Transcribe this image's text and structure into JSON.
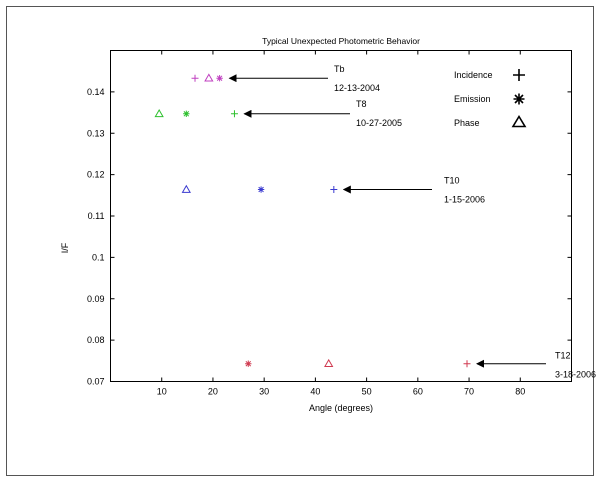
{
  "chart_data": {
    "type": "scatter",
    "title": "Typical Unexpected Photometric Behavior",
    "xlabel": "Angle (degrees)",
    "ylabel": "I/F",
    "xlim": [
      0,
      90
    ],
    "ylim": [
      0.07,
      0.15
    ],
    "xticks": [
      "10",
      "20",
      "30",
      "40",
      "50",
      "60",
      "70",
      "80"
    ],
    "yticks": [
      "0.07",
      "0.08",
      "0.09",
      "0.1",
      "0.11",
      "0.12",
      "0.13",
      "0.14"
    ],
    "grid": false,
    "legend": {
      "placement": "top-right",
      "entries": [
        {
          "label": "Incidence",
          "marker": "plus"
        },
        {
          "label": "Emission",
          "marker": "star"
        },
        {
          "label": "Phase",
          "marker": "triangle"
        }
      ]
    },
    "series": [
      {
        "flyby": "Tb 12-13-2004",
        "color": "#c040c0",
        "points": [
          {
            "kind": "incidence",
            "x": 16.5,
            "y": 0.1433
          },
          {
            "kind": "phase",
            "x": 19.2,
            "y": 0.1433
          },
          {
            "kind": "emission",
            "x": 21.3,
            "y": 0.1433
          }
        ]
      },
      {
        "flyby": "T8 10-27-2005",
        "color": "#2ec02e",
        "points": [
          {
            "kind": "phase",
            "x": 9.5,
            "y": 0.1347
          },
          {
            "kind": "emission",
            "x": 14.8,
            "y": 0.1347
          },
          {
            "kind": "incidence",
            "x": 24.2,
            "y": 0.1347
          }
        ]
      },
      {
        "flyby": "T10 1-15-2006",
        "color": "#3a3ad0",
        "points": [
          {
            "kind": "phase",
            "x": 14.8,
            "y": 0.1164
          },
          {
            "kind": "emission",
            "x": 29.4,
            "y": 0.1164
          },
          {
            "kind": "incidence",
            "x": 43.6,
            "y": 0.1164
          }
        ]
      },
      {
        "flyby": "T12 3-18-2006",
        "color": "#d03a50",
        "points": [
          {
            "kind": "emission",
            "x": 26.9,
            "y": 0.0743
          },
          {
            "kind": "phase",
            "x": 42.6,
            "y": 0.0743
          },
          {
            "kind": "incidence",
            "x": 69.6,
            "y": 0.0743
          }
        ]
      }
    ],
    "annotations": [
      {
        "id": "tb",
        "label_line1": "Tb",
        "label_line2": "12-13-2004",
        "point_x": 21.3,
        "point_y": 0.1433
      },
      {
        "id": "t8",
        "label_line1": "T8",
        "label_line2": "10-27-2005",
        "point_x": 24.2,
        "point_y": 0.1347
      },
      {
        "id": "t10",
        "label_line1": "T10",
        "label_line2": "1-15-2006",
        "point_x": 43.6,
        "point_y": 0.1164
      },
      {
        "id": "t12",
        "label_line1": "T12",
        "label_line2": "3-18-2006",
        "point_x": 69.6,
        "point_y": 0.0743
      }
    ]
  }
}
